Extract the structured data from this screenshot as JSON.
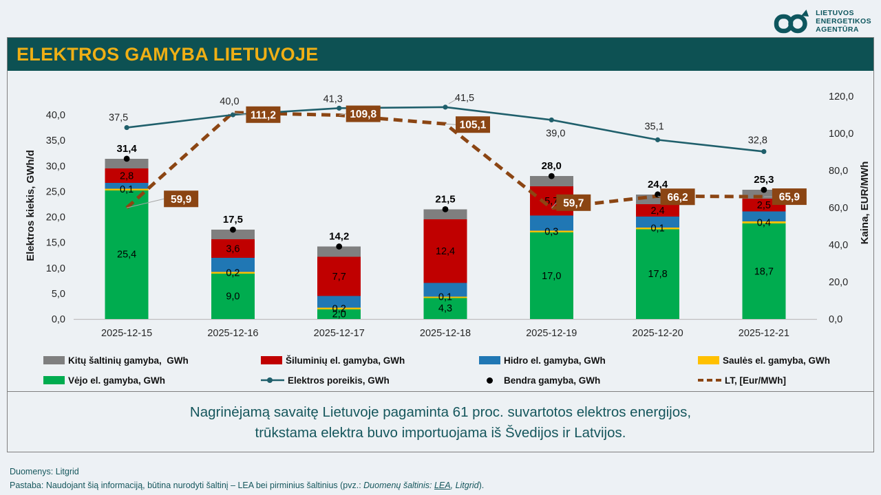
{
  "header": {
    "title": "ELEKTROS GAMYBA LIETUVOJE"
  },
  "logo": {
    "lines": [
      "LIETUVOS",
      "ENERGETIKOS",
      "AGENTŪRA"
    ],
    "color": "#0E565E"
  },
  "chart_data": {
    "type": "bar",
    "stacked": true,
    "categories": [
      "2025-12-15",
      "2025-12-16",
      "2025-12-17",
      "2025-12-18",
      "2025-12-19",
      "2025-12-20",
      "2025-12-21"
    ],
    "left_axis": {
      "title": "Elektros kiekis, GWh/d",
      "min": 0,
      "max": 40,
      "tick_step": 5
    },
    "right_axis": {
      "title": "Kaina, EUR/MWh",
      "min": 0,
      "max": 120,
      "tick_step": 20
    },
    "grid": false,
    "legend_position": "bottom",
    "bar_series": [
      {
        "name": "Vėjo el. gamyba, GWh",
        "color": "#00AC4F",
        "show_labels": true,
        "values": [
          25.4,
          9.0,
          2.0,
          4.3,
          17.0,
          17.8,
          18.7
        ]
      },
      {
        "name": "Saulės el. gamyba, GWh",
        "color": "#FFC000",
        "show_labels": true,
        "values": [
          0.1,
          0.2,
          0.2,
          0.1,
          0.3,
          0.1,
          0.4
        ]
      },
      {
        "name": "Hidro el. gamyba, GWh",
        "color": "#2077B4",
        "show_labels": false,
        "values": [
          1.2,
          2.8,
          2.3,
          2.7,
          3.0,
          2.2,
          2.0
        ]
      },
      {
        "name": "Šiluminių el. gamyba, GWh",
        "color": "#C00000",
        "show_labels": true,
        "values": [
          2.8,
          3.6,
          7.7,
          12.4,
          5.7,
          2.4,
          2.5
        ]
      },
      {
        "name": "Kitų šaltinių gamyba,  GWh",
        "color": "#7F7F7F",
        "show_labels": false,
        "values": [
          1.9,
          1.9,
          2.0,
          2.0,
          2.0,
          1.9,
          1.7
        ]
      }
    ],
    "totals": {
      "name": "Bendra gamyba, GWh",
      "color": "#000000",
      "values": [
        31.4,
        17.5,
        14.2,
        21.5,
        28.0,
        24.4,
        25.3
      ]
    },
    "demand_line": {
      "name": "Elektros poreikis, GWh",
      "color": "#1F5F6B",
      "values": [
        37.5,
        40.0,
        41.3,
        41.5,
        39.0,
        35.1,
        32.8
      ]
    },
    "price_line": {
      "name": "LT, [Eur/MWh]",
      "color": "#8B4513",
      "label_text_color": "#FFFFFF",
      "values": [
        59.9,
        111.2,
        109.8,
        105.1,
        59.7,
        66.2,
        65.9
      ]
    }
  },
  "legend": {
    "items": [
      {
        "label": "Kitų šaltinių gamyba,  GWh",
        "swatch": "rect",
        "color": "#7F7F7F"
      },
      {
        "label": "Šiluminių el. gamyba, GWh",
        "swatch": "rect",
        "color": "#C00000"
      },
      {
        "label": "Hidro el. gamyba, GWh",
        "swatch": "rect",
        "color": "#2077B4"
      },
      {
        "label": "Saulės el. gamyba, GWh",
        "swatch": "rect",
        "color": "#FFC000"
      },
      {
        "label": "Vėjo el. gamyba, GWh",
        "swatch": "rect",
        "color": "#00AC4F"
      },
      {
        "label": "Elektros poreikis, GWh",
        "swatch": "line-dot",
        "color": "#1F5F6B"
      },
      {
        "label": "Bendra gamyba, GWh",
        "swatch": "dot",
        "color": "#000000"
      },
      {
        "label": "LT, [Eur/MWh]",
        "swatch": "dashes",
        "color": "#8B4513"
      }
    ]
  },
  "note": {
    "line1": "Nagrinėjamą savaitę Lietuvoje pagaminta 61 proc. suvartotos elektros energijos,",
    "line2": "trūkstama elektra buvo importuojama iš Švedijos ir Latvijos."
  },
  "footer": {
    "line1": "Duomenys: Litgrid",
    "line2_prefix": "Pastaba: Naudojant šią informaciją, būtina nurodyti šaltinį – LEA bei pirminius šaltinius (pvz.: ",
    "line2_italic": "Duomenų šaltinis: ",
    "line2_link": "LEA",
    "line2_italic2": ", Litgrid",
    "line2_suffix": ")."
  }
}
